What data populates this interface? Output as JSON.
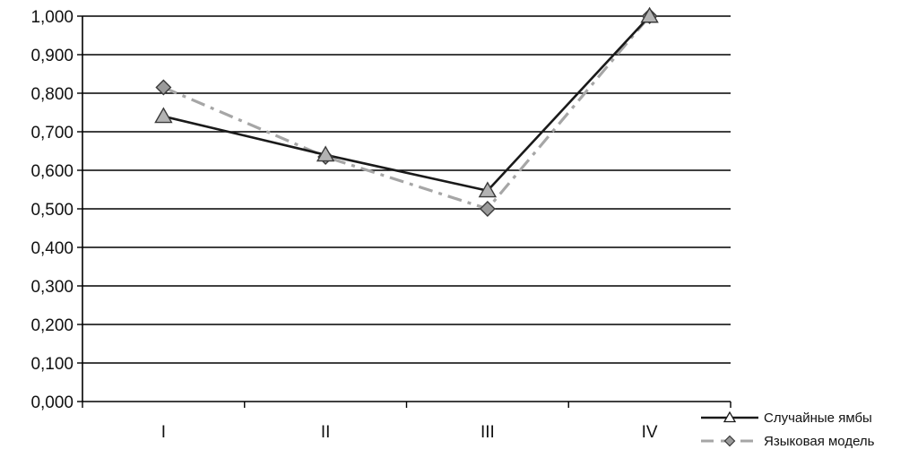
{
  "chart_data": {
    "type": "line",
    "categories": [
      "I",
      "II",
      "III",
      "IV"
    ],
    "y_ticks": [
      "0,000",
      "0,100",
      "0,200",
      "0,300",
      "0,400",
      "0,500",
      "0,600",
      "0,700",
      "0,800",
      "0,900",
      "1,000"
    ],
    "ylim": [
      0,
      1
    ],
    "grid": true,
    "legend_position": "bottom-right",
    "series": [
      {
        "name": "Случайные ямбы",
        "values": [
          0.74,
          0.64,
          0.547,
          1.0
        ],
        "color": "#1a1a1a",
        "line_style": "solid",
        "marker": "triangle"
      },
      {
        "name": "Языковая модель",
        "values": [
          0.815,
          0.635,
          0.5,
          1.0
        ],
        "color": "#a6a6a6",
        "line_style": "dash-dot",
        "marker": "diamond"
      }
    ]
  }
}
